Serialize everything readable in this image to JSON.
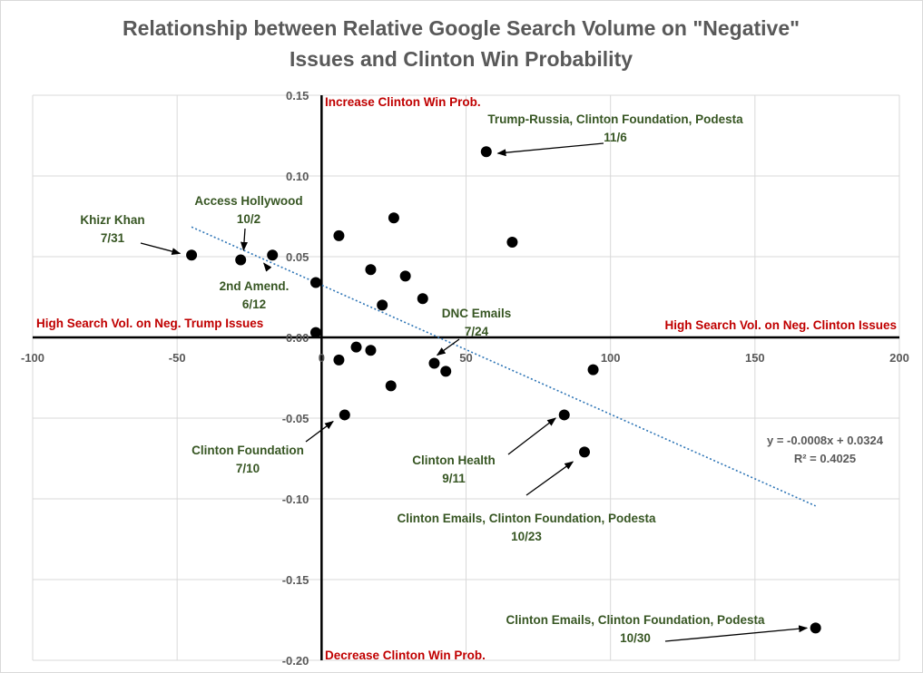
{
  "chart_data": {
    "type": "scatter",
    "title_lines": [
      "Relationship between Relative Google Search Volume on \"Negative\"",
      "Issues and Clinton Win Probability"
    ],
    "xlim": [
      -100,
      200
    ],
    "ylim": [
      -0.2,
      0.15
    ],
    "x_ticks": [
      -100,
      -50,
      0,
      50,
      100,
      150,
      200
    ],
    "x_tick_labels": [
      "-100",
      "-50",
      "0",
      "50",
      "100",
      "150",
      "200"
    ],
    "y_ticks": [
      -0.2,
      -0.15,
      -0.1,
      -0.05,
      0,
      0.05,
      0.1,
      0.15
    ],
    "y_tick_labels": [
      "-0.20",
      "-0.15",
      "-0.10",
      "-0.05",
      "0.00",
      "0.05",
      "0.10",
      "0.15"
    ],
    "gridlines": true,
    "points": [
      {
        "x": -45,
        "y": 0.051
      },
      {
        "x": -28,
        "y": 0.048
      },
      {
        "x": -17,
        "y": 0.051
      },
      {
        "x": -2,
        "y": 0.034
      },
      {
        "x": -2,
        "y": 0.003
      },
      {
        "x": 6,
        "y": 0.063
      },
      {
        "x": 25,
        "y": 0.074
      },
      {
        "x": 17,
        "y": 0.042
      },
      {
        "x": 29,
        "y": 0.038
      },
      {
        "x": 21,
        "y": 0.02
      },
      {
        "x": 35,
        "y": 0.024
      },
      {
        "x": 57,
        "y": 0.115
      },
      {
        "x": 66,
        "y": 0.059
      },
      {
        "x": 6,
        "y": -0.014
      },
      {
        "x": 12,
        "y": -0.006
      },
      {
        "x": 17,
        "y": -0.008
      },
      {
        "x": 24,
        "y": -0.03
      },
      {
        "x": 39,
        "y": -0.016
      },
      {
        "x": 43,
        "y": -0.021
      },
      {
        "x": 8,
        "y": -0.048
      },
      {
        "x": 84,
        "y": -0.048
      },
      {
        "x": 91,
        "y": -0.071
      },
      {
        "x": 94,
        "y": -0.02
      },
      {
        "x": 171,
        "y": -0.18
      }
    ],
    "trendline": {
      "slope": -0.0008,
      "intercept": 0.0324,
      "x_range": [
        -45,
        171
      ],
      "equation_text": "y = -0.0008x + 0.0324",
      "r2_text": "R² = 0.4025"
    },
    "quadrant_labels": {
      "top": "Increase Clinton Win Prob.",
      "bottom": "Decrease Clinton Win Prob.",
      "left": "High Search Vol. on Neg. Trump Issues",
      "right": "High Search Vol. on Neg. Clinton Issues"
    },
    "annotations": [
      {
        "lines": [
          "Trump-Russia, Clinton Foundation, Podesta",
          "11/6"
        ],
        "arrow_to": {
          "x": 61,
          "y": 0.114
        }
      },
      {
        "lines": [
          "Access Hollywood",
          "10/2"
        ],
        "arrow_to": {
          "x": -27,
          "y": 0.054
        }
      },
      {
        "lines": [
          "Khizr Khan",
          "7/31"
        ],
        "arrow_to": {
          "x": -49,
          "y": 0.052
        }
      },
      {
        "lines": [
          "2nd Amend.",
          "6/12"
        ],
        "arrow_to": {
          "x": -20,
          "y": 0.046
        }
      },
      {
        "lines": [
          "DNC Emails",
          "7/24"
        ],
        "arrow_to": {
          "x": 40,
          "y": -0.011
        }
      },
      {
        "lines": [
          "Clinton Foundation",
          "7/10"
        ],
        "arrow_to": {
          "x": 4,
          "y": -0.052
        }
      },
      {
        "lines": [
          "Clinton Health",
          "9/11"
        ],
        "arrow_to": {
          "x": 81,
          "y": -0.05
        }
      },
      {
        "lines": [
          "Clinton Emails, Clinton Foundation, Podesta",
          "10/23"
        ],
        "arrow_to": {
          "x": 87,
          "y": -0.077
        }
      },
      {
        "lines": [
          "Clinton Emails, Clinton Foundation, Podesta",
          "10/30"
        ],
        "arrow_to": {
          "x": 168,
          "y": -0.18
        }
      }
    ]
  }
}
